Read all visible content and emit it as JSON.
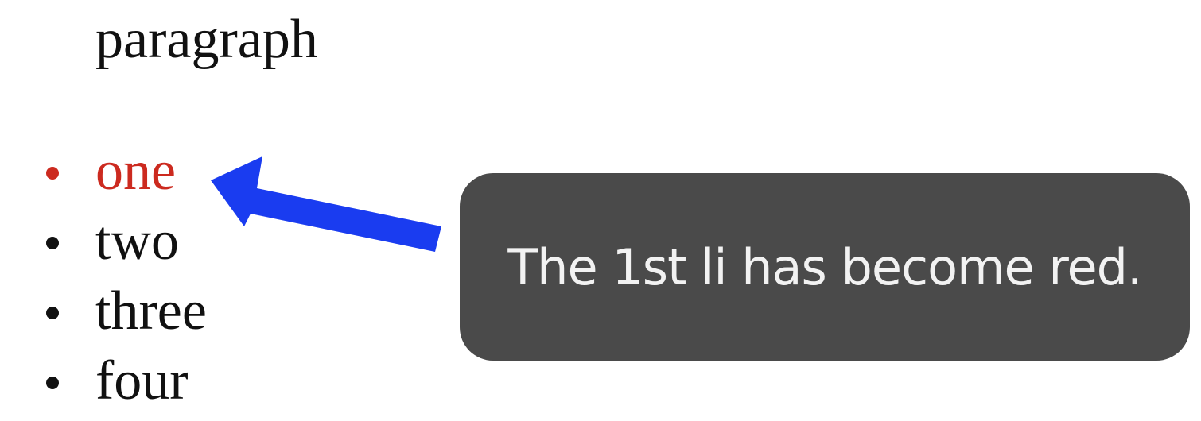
{
  "paragraph": {
    "text": "paragraph"
  },
  "list": {
    "items": [
      {
        "label": "one",
        "highlighted": true
      },
      {
        "label": "two",
        "highlighted": false
      },
      {
        "label": "three",
        "highlighted": false
      },
      {
        "label": "four",
        "highlighted": false
      }
    ]
  },
  "callout": {
    "text": "The 1st li has become red."
  },
  "colors": {
    "highlight": "#cc2a1f",
    "arrow": "#1a3cf0",
    "callout_background": "#4a4a4a",
    "callout_text": "#f2f2f2",
    "text": "#111111"
  }
}
